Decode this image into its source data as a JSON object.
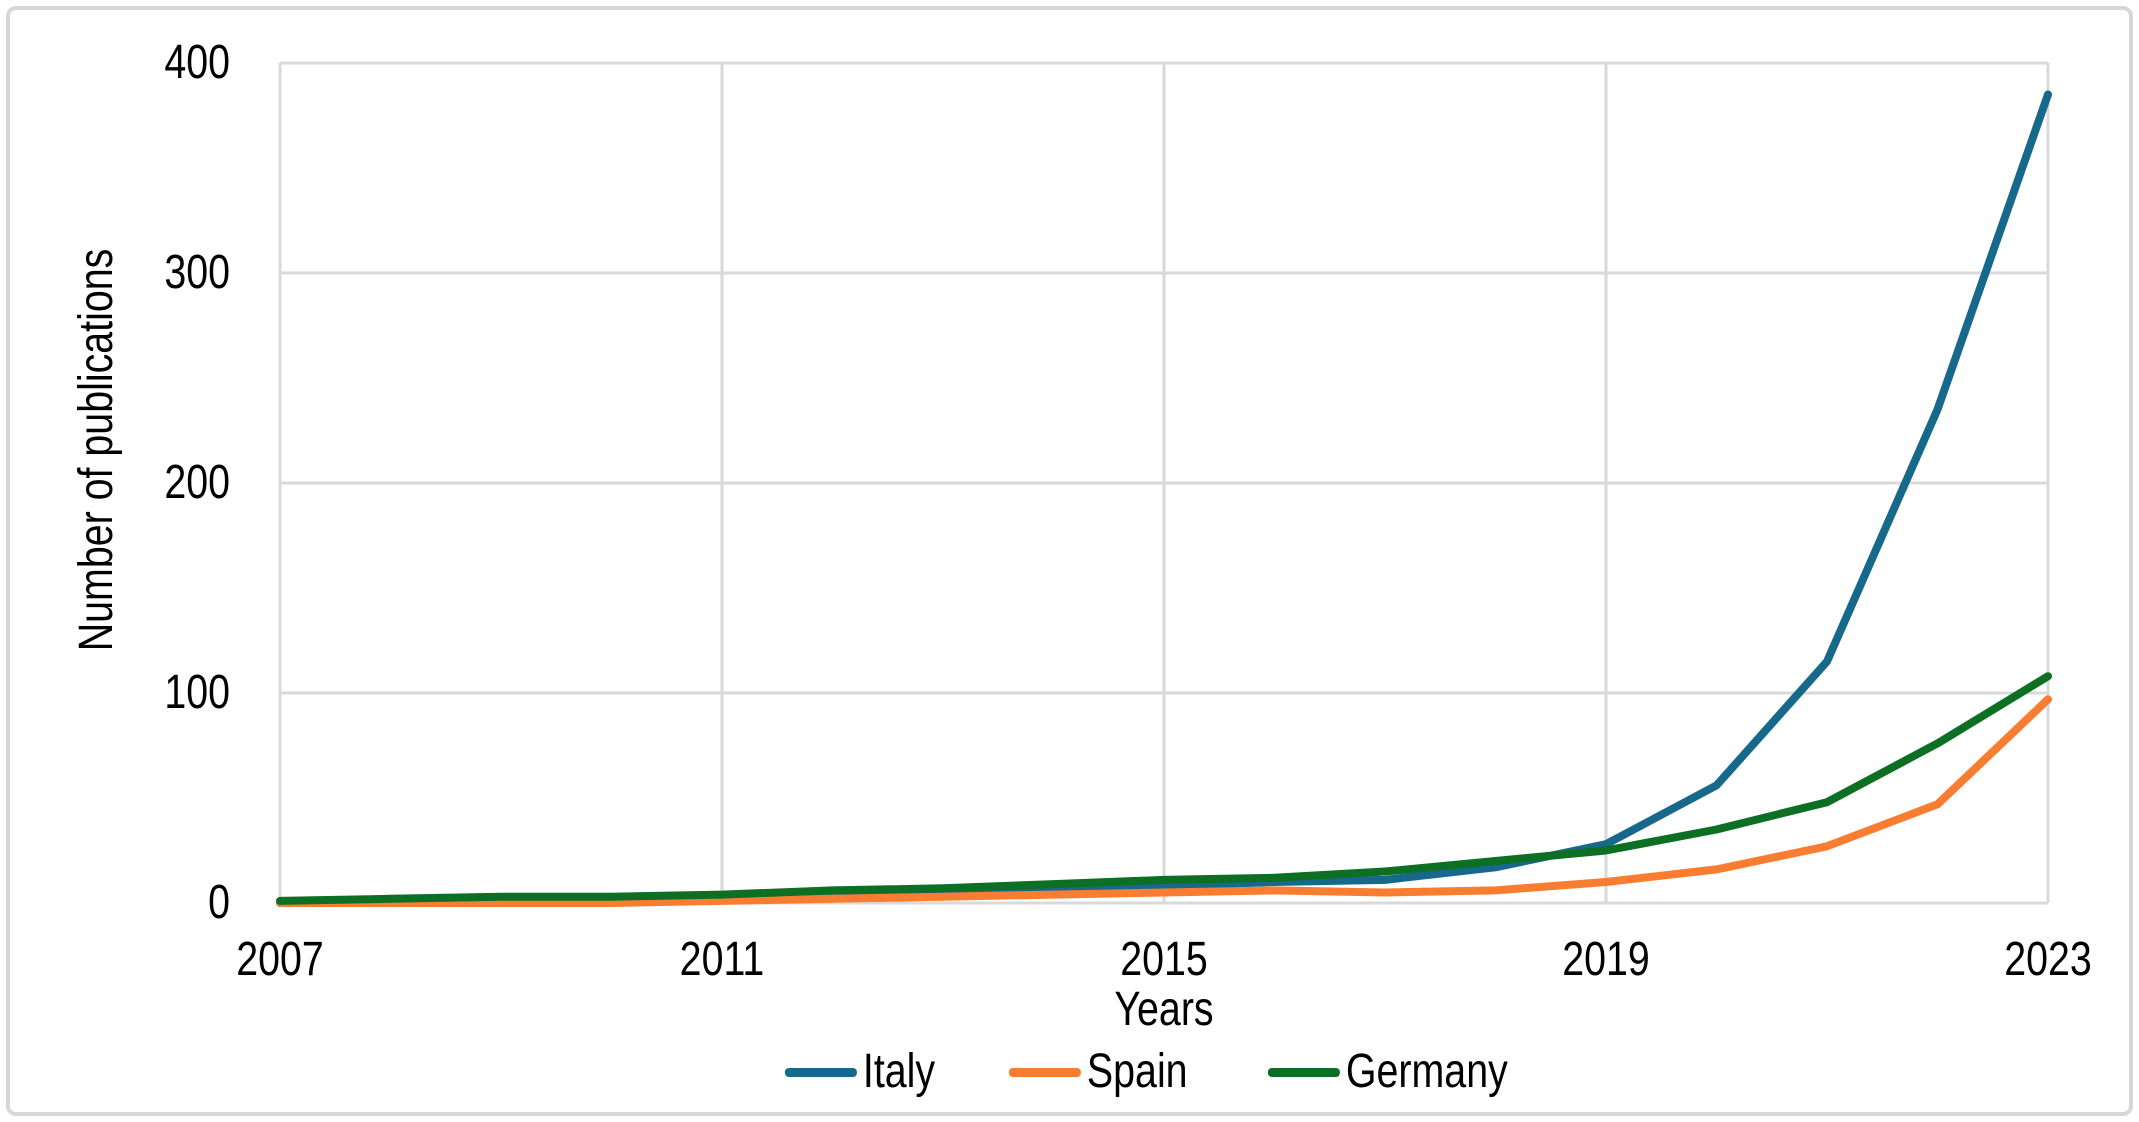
{
  "chart_data": {
    "type": "line",
    "title": "",
    "xlabel": "Years",
    "ylabel": "Number of publications",
    "x": [
      2007,
      2008,
      2009,
      2010,
      2011,
      2012,
      2013,
      2014,
      2015,
      2016,
      2017,
      2018,
      2019,
      2020,
      2021,
      2022,
      2023
    ],
    "series": [
      {
        "name": "Italy",
        "color": "#17698c",
        "values": [
          0,
          1,
          1,
          2,
          3,
          4,
          5,
          7,
          8,
          10,
          11,
          17,
          28,
          56,
          115,
          235,
          385
        ]
      },
      {
        "name": "Spain",
        "color": "#f87d31",
        "values": [
          0,
          0,
          0,
          0,
          1,
          2,
          3,
          4,
          5,
          6,
          5,
          6,
          10,
          16,
          27,
          47,
          97
        ]
      },
      {
        "name": "Germany",
        "color": "#0c6f23",
        "values": [
          1,
          2,
          3,
          3,
          4,
          6,
          7,
          9,
          11,
          12,
          15,
          20,
          25,
          35,
          48,
          76,
          108
        ]
      }
    ],
    "xticks": [
      2007,
      2011,
      2015,
      2019,
      2023
    ],
    "yticks": [
      0,
      100,
      200,
      300,
      400
    ],
    "xlim": [
      2007,
      2023
    ],
    "ylim": [
      0,
      400
    ],
    "grid": true,
    "gridline_color": "#d9d9d9",
    "legend_position": "bottom"
  }
}
